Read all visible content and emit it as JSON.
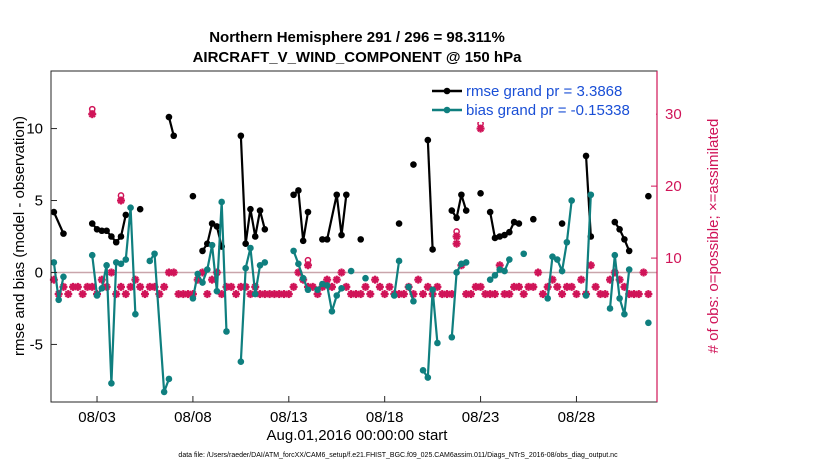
{
  "chart_data": {
    "type": "line",
    "title": "Northern Hemisphere 291 / 296 = 98.311%",
    "subtitle": "AIRCRAFT_V_WIND_COMPONENT @ 150 hPa",
    "xlabel": "Aug.01,2016 00:00:00 start",
    "ylabel": "rmse and bias (model - observation)",
    "ylabel_right": "# of obs: o=possible; ×=assimilated",
    "footer": "data file: /Users/raeder/DAI/ATM_forcXX/CAM6_setup/f.e21.FHIST_BGC.f09_025.CAM6assim.011/Diags_NTrS_2016-08/obs_diag_output.nc",
    "xlim": [
      0.6,
      32.2
    ],
    "ylim": [
      -9,
      14
    ],
    "ylim_right": [
      -10,
      36
    ],
    "grid": false,
    "x_ticks": [
      3,
      8,
      13,
      18,
      23,
      28
    ],
    "x_tick_labels": [
      "08/03",
      "08/08",
      "08/13",
      "08/18",
      "08/23",
      "08/28"
    ],
    "y_ticks": [
      -5,
      0,
      5,
      10
    ],
    "y_tick_labels": [
      "-5",
      "0",
      "5",
      "10"
    ],
    "y_ticks_right": [
      10,
      20,
      30
    ],
    "y_tick_labels_right": [
      "10",
      "20",
      "30"
    ],
    "legend_position": "top-right",
    "colors": {
      "rmse": "#000000",
      "bias": "#0f7f7f",
      "obs": "#d01458",
      "zero_line": "#c9a5ab",
      "legend_text": "#1a4fd6"
    },
    "series": [
      {
        "name": "rmse grand pr = 3.3868",
        "color": "#000000",
        "points": [
          [
            0.75,
            4.2
          ],
          [
            1.25,
            2.7
          ],
          [
            null,
            null
          ],
          [
            2.75,
            3.4
          ],
          [
            3.0,
            3.0
          ],
          [
            3.25,
            2.9
          ],
          [
            3.5,
            2.9
          ],
          [
            3.75,
            2.5
          ],
          [
            4.0,
            2.1
          ],
          [
            4.25,
            2.5
          ],
          [
            4.5,
            4.0
          ],
          [
            null,
            null
          ],
          [
            5.25,
            4.4
          ],
          [
            null,
            null
          ],
          [
            6.75,
            10.8
          ],
          [
            7.0,
            9.5
          ],
          [
            null,
            null
          ],
          [
            8.0,
            5.3
          ],
          [
            null,
            null
          ],
          [
            8.5,
            1.5
          ],
          [
            8.75,
            2.0
          ],
          [
            9.0,
            3.4
          ],
          [
            9.25,
            3.2
          ],
          [
            9.5,
            1.8
          ],
          [
            null,
            null
          ],
          [
            10.5,
            9.5
          ],
          [
            10.75,
            2.0
          ],
          [
            11.0,
            4.4
          ],
          [
            11.25,
            2.5
          ],
          [
            11.5,
            4.3
          ],
          [
            11.75,
            3.0
          ],
          [
            null,
            null
          ],
          [
            13.25,
            5.4
          ],
          [
            13.5,
            5.7
          ],
          [
            13.75,
            2.2
          ],
          [
            14.0,
            4.2
          ],
          [
            null,
            null
          ],
          [
            14.75,
            2.3
          ],
          [
            15.0,
            2.3
          ],
          [
            15.5,
            5.4
          ],
          [
            15.75,
            2.6
          ],
          [
            16.0,
            5.4
          ],
          [
            null,
            null
          ],
          [
            16.75,
            2.3
          ],
          [
            null,
            null
          ],
          [
            18.75,
            3.4
          ],
          [
            null,
            null
          ],
          [
            19.5,
            7.5
          ],
          [
            null,
            null
          ],
          [
            20.25,
            9.2
          ],
          [
            20.5,
            1.6
          ],
          [
            null,
            null
          ],
          [
            21.5,
            4.3
          ],
          [
            21.75,
            3.8
          ],
          [
            22.0,
            5.4
          ],
          [
            22.25,
            4.3
          ],
          [
            null,
            null
          ],
          [
            23.0,
            5.5
          ],
          [
            null,
            null
          ],
          [
            23.5,
            4.2
          ],
          [
            23.75,
            2.4
          ],
          [
            24.0,
            2.5
          ],
          [
            24.25,
            2.6
          ],
          [
            24.5,
            2.8
          ],
          [
            24.75,
            3.5
          ],
          [
            25.0,
            3.4
          ],
          [
            null,
            null
          ],
          [
            25.75,
            3.7
          ],
          [
            null,
            null
          ],
          [
            27.25,
            3.4
          ],
          [
            null,
            null
          ],
          [
            28.5,
            8.1
          ],
          [
            28.75,
            2.5
          ],
          [
            null,
            null
          ],
          [
            30.0,
            3.5
          ],
          [
            30.25,
            3.0
          ],
          [
            30.5,
            2.3
          ],
          [
            30.75,
            1.5
          ],
          [
            null,
            null
          ],
          [
            31.75,
            5.3
          ]
        ]
      },
      {
        "name": "bias grand pr = -0.15338",
        "color": "#0f7f7f",
        "points": [
          [
            0.75,
            0.7
          ],
          [
            1.0,
            -1.9
          ],
          [
            1.25,
            -0.3
          ],
          [
            null,
            null
          ],
          [
            2.75,
            1.2
          ],
          [
            3.0,
            -1.6
          ],
          [
            3.25,
            -1.1
          ],
          [
            3.5,
            0.5
          ],
          [
            3.75,
            -7.7
          ],
          [
            4.0,
            0.7
          ],
          [
            4.25,
            0.6
          ],
          [
            4.5,
            0.9
          ],
          [
            4.75,
            4.5
          ],
          [
            5.0,
            -2.9
          ],
          [
            null,
            null
          ],
          [
            5.75,
            0.8
          ],
          [
            6.0,
            1.3
          ],
          [
            6.5,
            -8.3
          ],
          [
            6.75,
            -7.4
          ],
          [
            null,
            null
          ],
          [
            8.0,
            -1.8
          ],
          [
            8.25,
            -0.1
          ],
          [
            8.5,
            -0.7
          ],
          [
            8.75,
            0.2
          ],
          [
            9.0,
            1.9
          ],
          [
            9.25,
            -1.3
          ],
          [
            9.5,
            4.9
          ],
          [
            9.75,
            -4.1
          ],
          [
            null,
            null
          ],
          [
            10.5,
            -6.2
          ],
          [
            10.75,
            0.3
          ],
          [
            11.0,
            1.7
          ],
          [
            11.25,
            -1.5
          ],
          [
            11.5,
            0.5
          ],
          [
            11.75,
            0.7
          ],
          [
            null,
            null
          ],
          [
            13.25,
            1.5
          ],
          [
            13.5,
            0.6
          ],
          [
            13.75,
            -0.4
          ],
          [
            14.0,
            -1.2
          ],
          [
            null,
            null
          ],
          [
            14.5,
            -1.2
          ],
          [
            14.75,
            -0.8
          ],
          [
            15.0,
            -0.9
          ],
          [
            15.25,
            -2.7
          ],
          [
            15.5,
            -1.6
          ],
          [
            15.75,
            -1.1
          ],
          [
            null,
            null
          ],
          [
            16.25,
            0.1
          ],
          [
            null,
            null
          ],
          [
            17.0,
            -0.4
          ],
          [
            null,
            null
          ],
          [
            18.5,
            -1.6
          ],
          [
            18.75,
            0.8
          ],
          [
            null,
            null
          ],
          [
            19.25,
            -1.0
          ],
          [
            19.5,
            -2.0
          ],
          [
            null,
            null
          ],
          [
            20.0,
            -6.8
          ],
          [
            20.25,
            -7.3
          ],
          [
            20.5,
            -1.2
          ],
          [
            20.75,
            -4.9
          ],
          [
            null,
            null
          ],
          [
            21.5,
            -4.5
          ],
          [
            21.75,
            0.0
          ],
          [
            22.0,
            0.6
          ],
          [
            22.25,
            0.7
          ],
          [
            null,
            null
          ],
          [
            23.5,
            -0.5
          ],
          [
            23.75,
            -0.2
          ],
          [
            24.0,
            0.2
          ],
          [
            24.25,
            0.1
          ],
          [
            24.5,
            0.9
          ],
          [
            null,
            null
          ],
          [
            25.25,
            1.3
          ],
          [
            null,
            null
          ],
          [
            26.5,
            -1.8
          ],
          [
            26.75,
            1.1
          ],
          [
            27.0,
            0.9
          ],
          [
            27.25,
            0.1
          ],
          [
            27.5,
            2.1
          ],
          [
            27.75,
            5.0
          ],
          [
            null,
            null
          ],
          [
            28.5,
            -1.6
          ],
          [
            28.75,
            5.4
          ],
          [
            null,
            null
          ],
          [
            29.75,
            -2.5
          ],
          [
            30.0,
            1.2
          ],
          [
            30.25,
            -1.8
          ],
          [
            30.5,
            -2.9
          ],
          [
            30.75,
            0.2
          ],
          [
            null,
            null
          ],
          [
            31.75,
            -3.5
          ]
        ]
      }
    ],
    "obs_assimilated": [
      [
        0.75,
        7
      ],
      [
        1.0,
        5
      ],
      [
        1.25,
        6
      ],
      [
        1.5,
        5
      ],
      [
        1.75,
        6
      ],
      [
        2.0,
        6
      ],
      [
        2.25,
        5
      ],
      [
        2.5,
        6
      ],
      [
        2.75,
        6
      ],
      [
        3.0,
        5
      ],
      [
        3.25,
        7
      ],
      [
        3.5,
        6
      ],
      [
        3.75,
        8
      ],
      [
        4.0,
        5
      ],
      [
        4.25,
        6
      ],
      [
        4.5,
        5
      ],
      [
        4.75,
        6
      ],
      [
        5.0,
        7
      ],
      [
        5.25,
        6
      ],
      [
        5.5,
        5
      ],
      [
        5.75,
        6
      ],
      [
        6.0,
        6
      ],
      [
        6.25,
        5
      ],
      [
        6.5,
        6
      ],
      [
        6.75,
        8
      ],
      [
        7.0,
        8
      ],
      [
        7.25,
        5
      ],
      [
        7.5,
        5
      ],
      [
        7.75,
        5
      ],
      [
        8.0,
        5
      ],
      [
        8.25,
        7
      ],
      [
        8.5,
        8
      ],
      [
        8.75,
        5
      ],
      [
        9.0,
        7
      ],
      [
        9.25,
        8
      ],
      [
        9.5,
        5
      ],
      [
        9.75,
        6
      ],
      [
        10.0,
        6
      ],
      [
        10.25,
        5
      ],
      [
        10.5,
        6
      ],
      [
        10.75,
        6
      ],
      [
        11.0,
        5
      ],
      [
        11.25,
        6
      ],
      [
        11.5,
        5
      ],
      [
        11.75,
        5
      ],
      [
        12.0,
        5
      ],
      [
        12.25,
        5
      ],
      [
        12.5,
        5
      ],
      [
        12.75,
        5
      ],
      [
        13.0,
        5
      ],
      [
        13.25,
        6
      ],
      [
        13.5,
        8
      ],
      [
        13.75,
        7
      ],
      [
        14.0,
        6
      ],
      [
        14.25,
        6
      ],
      [
        14.5,
        5
      ],
      [
        14.75,
        6
      ],
      [
        15.0,
        7
      ],
      [
        15.25,
        6
      ],
      [
        15.5,
        7
      ],
      [
        15.75,
        8
      ],
      [
        16.0,
        6
      ],
      [
        16.25,
        5
      ],
      [
        16.5,
        5
      ],
      [
        16.75,
        5
      ],
      [
        17.0,
        6
      ],
      [
        17.25,
        5
      ],
      [
        17.5,
        7
      ],
      [
        17.75,
        6
      ],
      [
        18.0,
        5
      ],
      [
        18.25,
        6
      ],
      [
        18.5,
        5
      ],
      [
        18.75,
        5
      ],
      [
        19.0,
        5
      ],
      [
        19.25,
        6
      ],
      [
        19.5,
        5
      ],
      [
        19.75,
        7
      ],
      [
        20.0,
        5
      ],
      [
        20.25,
        6
      ],
      [
        20.5,
        5
      ],
      [
        20.75,
        6
      ],
      [
        21.0,
        5
      ],
      [
        21.25,
        5
      ],
      [
        21.5,
        5
      ],
      [
        21.75,
        12
      ],
      [
        22.0,
        9
      ],
      [
        22.25,
        5
      ],
      [
        22.5,
        5
      ],
      [
        22.75,
        6
      ],
      [
        23.0,
        6
      ],
      [
        23.25,
        5
      ],
      [
        23.5,
        5
      ],
      [
        23.75,
        5
      ],
      [
        24.0,
        9
      ],
      [
        24.25,
        5
      ],
      [
        24.5,
        5
      ],
      [
        24.75,
        6
      ],
      [
        25.0,
        6
      ],
      [
        25.25,
        5
      ],
      [
        25.5,
        6
      ],
      [
        25.75,
        6
      ],
      [
        26.0,
        8
      ],
      [
        26.25,
        5
      ],
      [
        26.5,
        6
      ],
      [
        26.75,
        7
      ],
      [
        27.0,
        6
      ],
      [
        27.25,
        5
      ],
      [
        27.5,
        6
      ],
      [
        27.75,
        6
      ],
      [
        28.0,
        5
      ],
      [
        28.25,
        7
      ],
      [
        28.5,
        5
      ],
      [
        28.75,
        9
      ],
      [
        29.0,
        6
      ],
      [
        29.25,
        5
      ],
      [
        29.5,
        5
      ],
      [
        29.75,
        7
      ],
      [
        30.0,
        8
      ],
      [
        30.25,
        7
      ],
      [
        30.5,
        6
      ],
      [
        30.75,
        5
      ],
      [
        31.0,
        5
      ],
      [
        31.25,
        5
      ],
      [
        31.5,
        8
      ],
      [
        31.75,
        5
      ]
    ],
    "obs_possible_outliers": [
      [
        2.75,
        30
      ],
      [
        4.25,
        18
      ],
      [
        14.0,
        9
      ],
      [
        21.75,
        13
      ],
      [
        23.0,
        28
      ]
    ]
  },
  "legend": [
    {
      "label": "rmse grand pr = 3.3868",
      "color": "#000000"
    },
    {
      "label": "bias grand pr = -0.15338",
      "color": "#0f7f7f"
    }
  ]
}
